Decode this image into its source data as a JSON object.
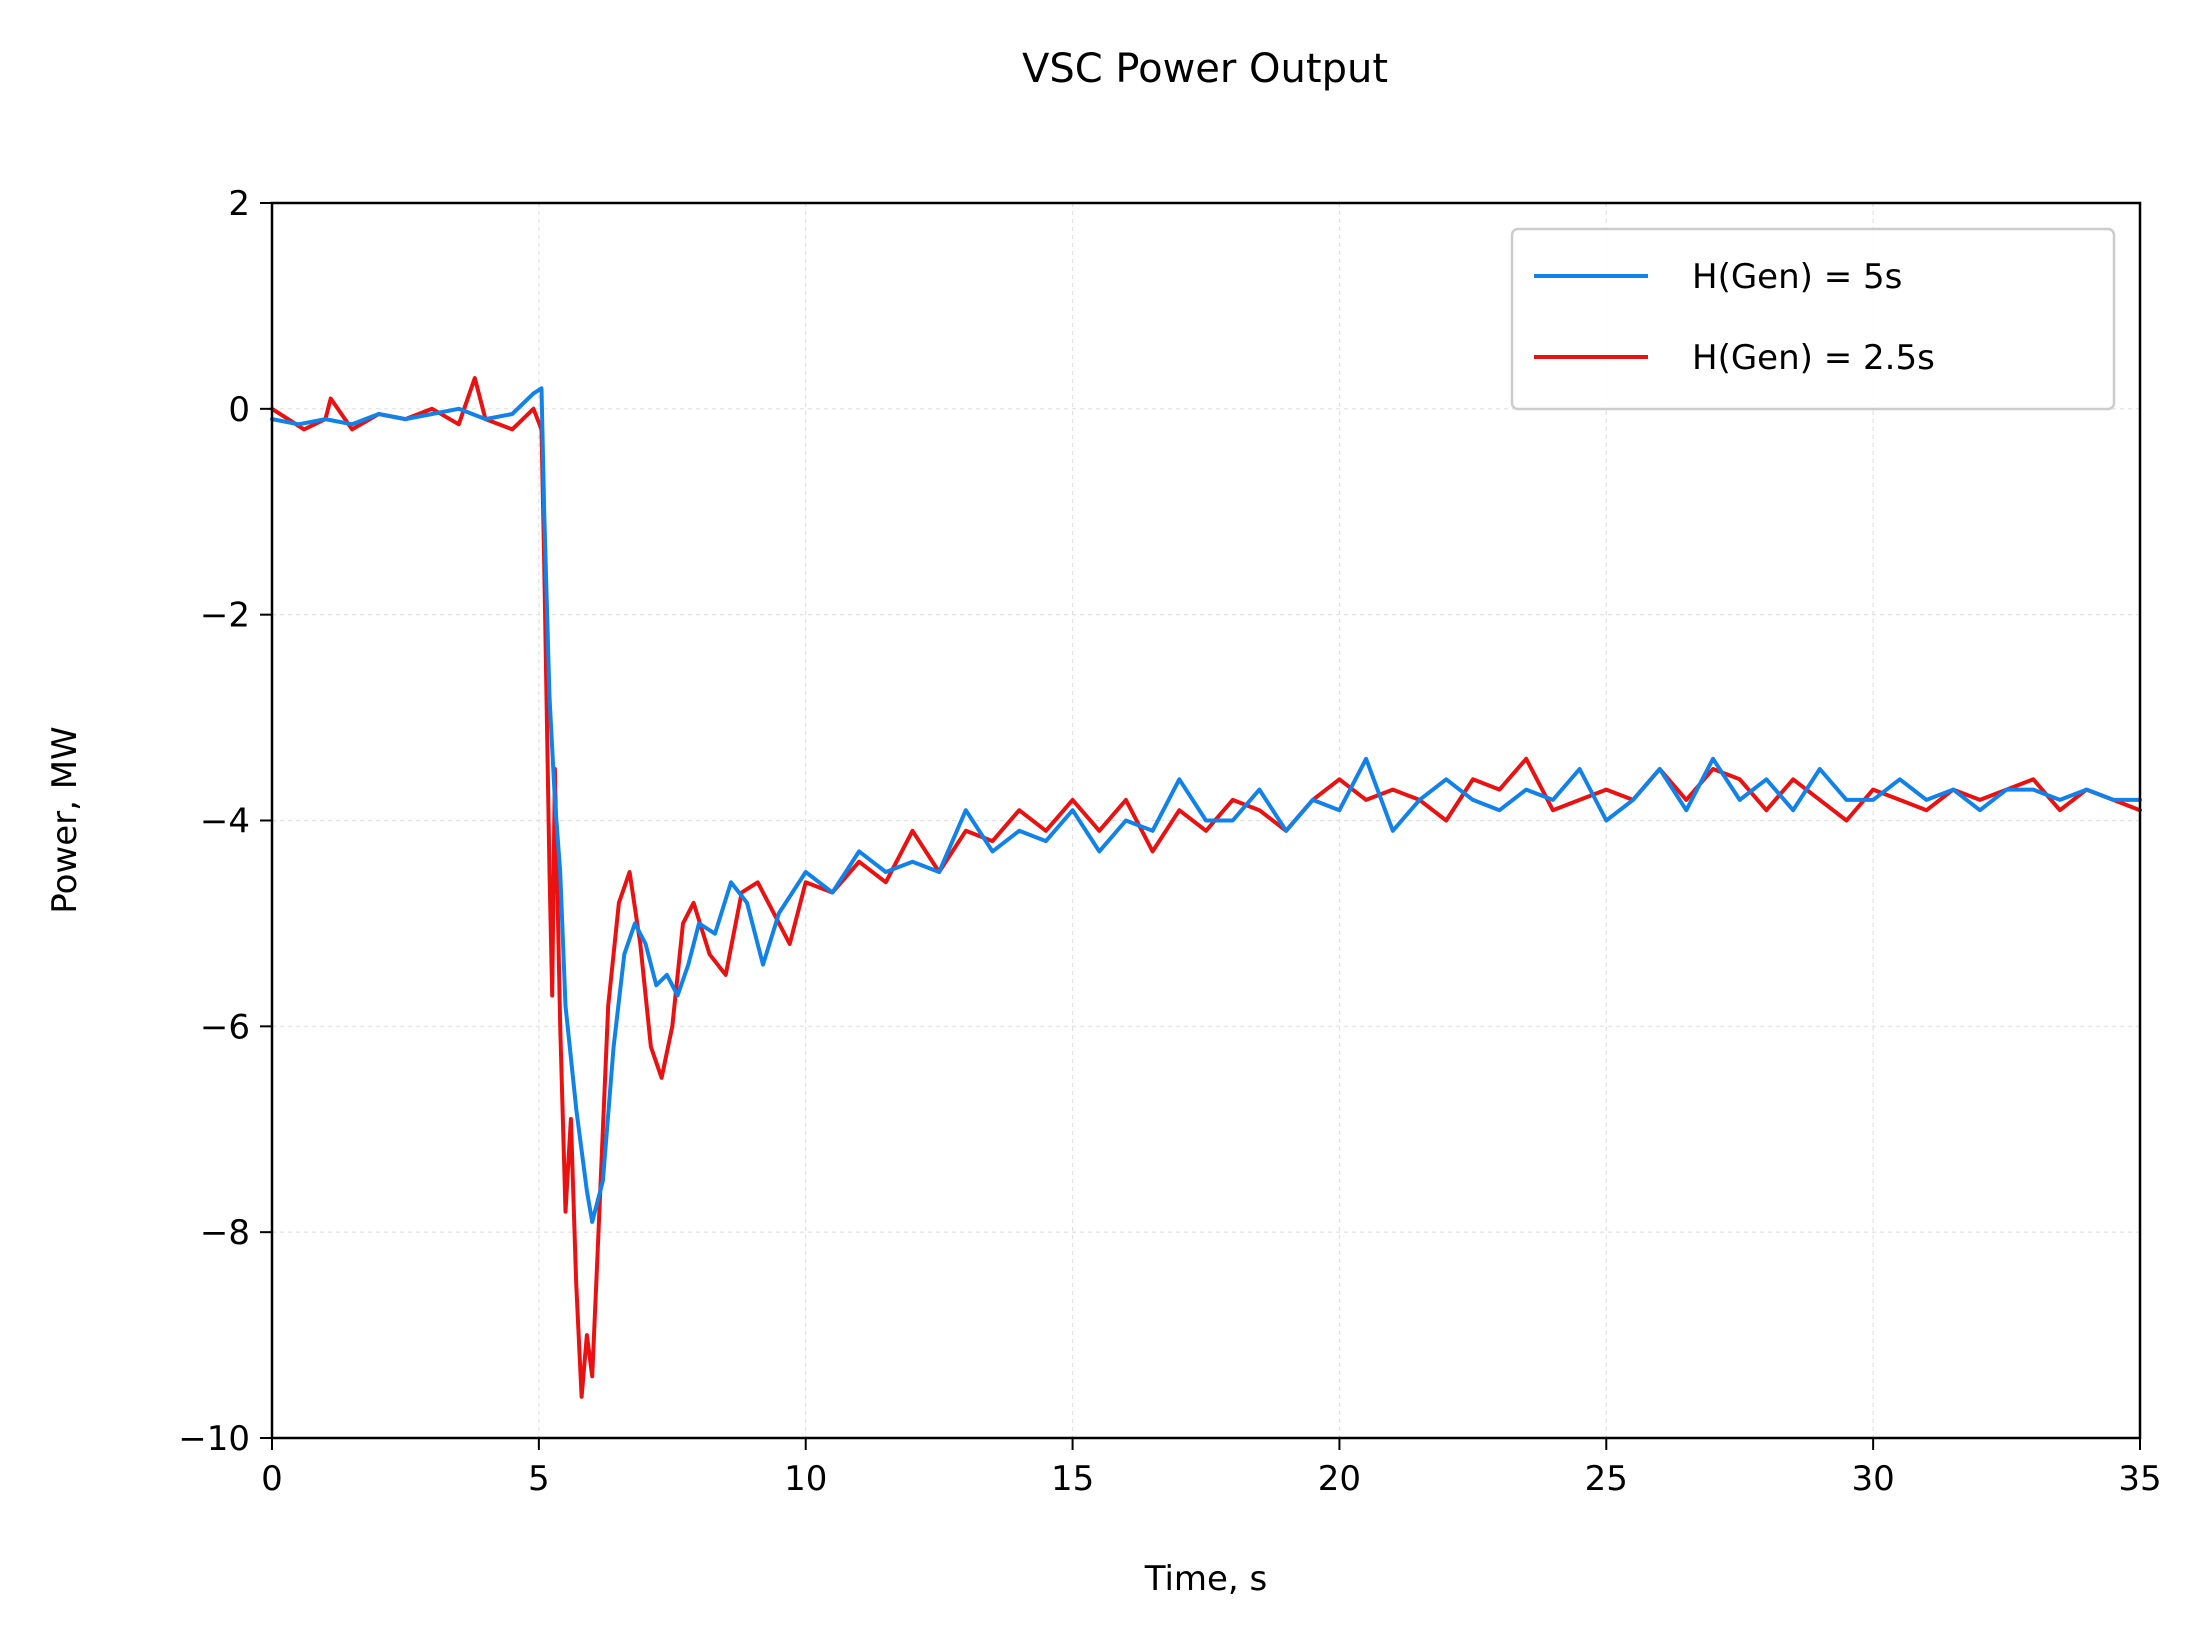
{
  "chart_data": {
    "type": "line",
    "title": "VSC Power Output",
    "xlabel": "Time, s",
    "ylabel": "Power, MW",
    "xlim": [
      0,
      35
    ],
    "ylim": [
      -10,
      2
    ],
    "xticks": [
      0,
      5,
      10,
      15,
      20,
      25,
      30,
      35
    ],
    "yticks": [
      2,
      0,
      -2,
      -4,
      -6,
      -8,
      -10
    ],
    "ytick_labels": [
      "2",
      "0",
      "−2",
      "−4",
      "−6",
      "−8",
      "−10"
    ],
    "grid": true,
    "legend_position": "top-right",
    "series": [
      {
        "name": "H(Gen) = 5s",
        "color": "#1182ea",
        "x": [
          0,
          0.5,
          1.0,
          1.5,
          2.0,
          2.5,
          3.0,
          3.5,
          4.0,
          4.5,
          4.9,
          5.05,
          5.1,
          5.2,
          5.3,
          5.4,
          5.5,
          5.7,
          5.9,
          6.0,
          6.2,
          6.4,
          6.6,
          6.8,
          7.0,
          7.2,
          7.4,
          7.6,
          7.8,
          8.0,
          8.3,
          8.6,
          8.9,
          9.2,
          9.5,
          10.0,
          10.5,
          11.0,
          11.5,
          12.0,
          12.5,
          13.0,
          13.5,
          14.0,
          14.5,
          15.0,
          15.5,
          16.0,
          16.5,
          17.0,
          17.5,
          18.0,
          18.5,
          19.0,
          19.5,
          20.0,
          20.5,
          21.0,
          21.5,
          22.0,
          22.5,
          23.0,
          23.5,
          24.0,
          24.5,
          25.0,
          25.5,
          26.0,
          26.5,
          27.0,
          27.5,
          28.0,
          28.5,
          29.0,
          29.5,
          30.0,
          30.5,
          31.0,
          31.5,
          32.0,
          32.5,
          33.0,
          33.5,
          34.0,
          34.5,
          35.0
        ],
        "y": [
          -0.1,
          -0.15,
          -0.1,
          -0.15,
          -0.05,
          -0.1,
          -0.05,
          0.0,
          -0.1,
          -0.05,
          0.15,
          0.2,
          -1.0,
          -2.8,
          -3.8,
          -4.5,
          -5.8,
          -6.8,
          -7.6,
          -7.9,
          -7.5,
          -6.2,
          -5.3,
          -5.0,
          -5.2,
          -5.6,
          -5.5,
          -5.7,
          -5.4,
          -5.0,
          -5.1,
          -4.6,
          -4.8,
          -5.4,
          -4.9,
          -4.5,
          -4.7,
          -4.3,
          -4.5,
          -4.4,
          -4.5,
          -3.9,
          -4.3,
          -4.1,
          -4.2,
          -3.9,
          -4.3,
          -4.0,
          -4.1,
          -3.6,
          -4.0,
          -4.0,
          -3.7,
          -4.1,
          -3.8,
          -3.9,
          -3.4,
          -4.1,
          -3.8,
          -3.6,
          -3.8,
          -3.9,
          -3.7,
          -3.8,
          -3.5,
          -4.0,
          -3.8,
          -3.5,
          -3.9,
          -3.4,
          -3.8,
          -3.6,
          -3.9,
          -3.5,
          -3.8,
          -3.8,
          -3.6,
          -3.8,
          -3.7,
          -3.9,
          -3.7,
          -3.7,
          -3.8,
          -3.7,
          -3.8,
          -3.8
        ]
      },
      {
        "name": "H(Gen) = 2.5s",
        "color": "#eb1111",
        "x": [
          0,
          0.3,
          0.6,
          1.0,
          1.1,
          1.5,
          2.0,
          2.5,
          3.0,
          3.5,
          3.8,
          4.0,
          4.5,
          4.9,
          5.05,
          5.1,
          5.2,
          5.25,
          5.3,
          5.4,
          5.5,
          5.6,
          5.7,
          5.8,
          5.9,
          6.0,
          6.1,
          6.3,
          6.5,
          6.7,
          6.9,
          7.1,
          7.3,
          7.5,
          7.7,
          7.9,
          8.2,
          8.5,
          8.8,
          9.1,
          9.4,
          9.7,
          10.0,
          10.5,
          11.0,
          11.5,
          12.0,
          12.5,
          13.0,
          13.5,
          14.0,
          14.5,
          15.0,
          15.5,
          16.0,
          16.5,
          17.0,
          17.5,
          18.0,
          18.5,
          19.0,
          19.5,
          20.0,
          20.5,
          21.0,
          21.5,
          22.0,
          22.5,
          23.0,
          23.5,
          24.0,
          24.5,
          25.0,
          25.5,
          26.0,
          26.5,
          27.0,
          27.5,
          28.0,
          28.5,
          29.0,
          29.5,
          30.0,
          30.5,
          31.0,
          31.5,
          32.0,
          32.5,
          33.0,
          33.5,
          34.0,
          34.5,
          35.0
        ],
        "y": [
          0.0,
          -0.1,
          -0.2,
          -0.1,
          0.1,
          -0.2,
          -0.05,
          -0.1,
          0.0,
          -0.15,
          0.3,
          -0.1,
          -0.2,
          0.0,
          -0.2,
          -1.5,
          -4.5,
          -5.7,
          -3.5,
          -6.0,
          -7.8,
          -6.9,
          -8.5,
          -9.6,
          -9.0,
          -9.4,
          -8.2,
          -5.8,
          -4.8,
          -4.5,
          -5.2,
          -6.2,
          -6.5,
          -6.0,
          -5.0,
          -4.8,
          -5.3,
          -5.5,
          -4.7,
          -4.6,
          -4.9,
          -5.2,
          -4.6,
          -4.7,
          -4.4,
          -4.6,
          -4.1,
          -4.5,
          -4.1,
          -4.2,
          -3.9,
          -4.1,
          -3.8,
          -4.1,
          -3.8,
          -4.3,
          -3.9,
          -4.1,
          -3.8,
          -3.9,
          -4.1,
          -3.8,
          -3.6,
          -3.8,
          -3.7,
          -3.8,
          -4.0,
          -3.6,
          -3.7,
          -3.4,
          -3.9,
          -3.8,
          -3.7,
          -3.8,
          -3.5,
          -3.8,
          -3.5,
          -3.6,
          -3.9,
          -3.6,
          -3.8,
          -4.0,
          -3.7,
          -3.8,
          -3.9,
          -3.7,
          -3.8,
          -3.7,
          -3.6,
          -3.9,
          -3.7,
          -3.8,
          -3.9
        ]
      }
    ]
  }
}
